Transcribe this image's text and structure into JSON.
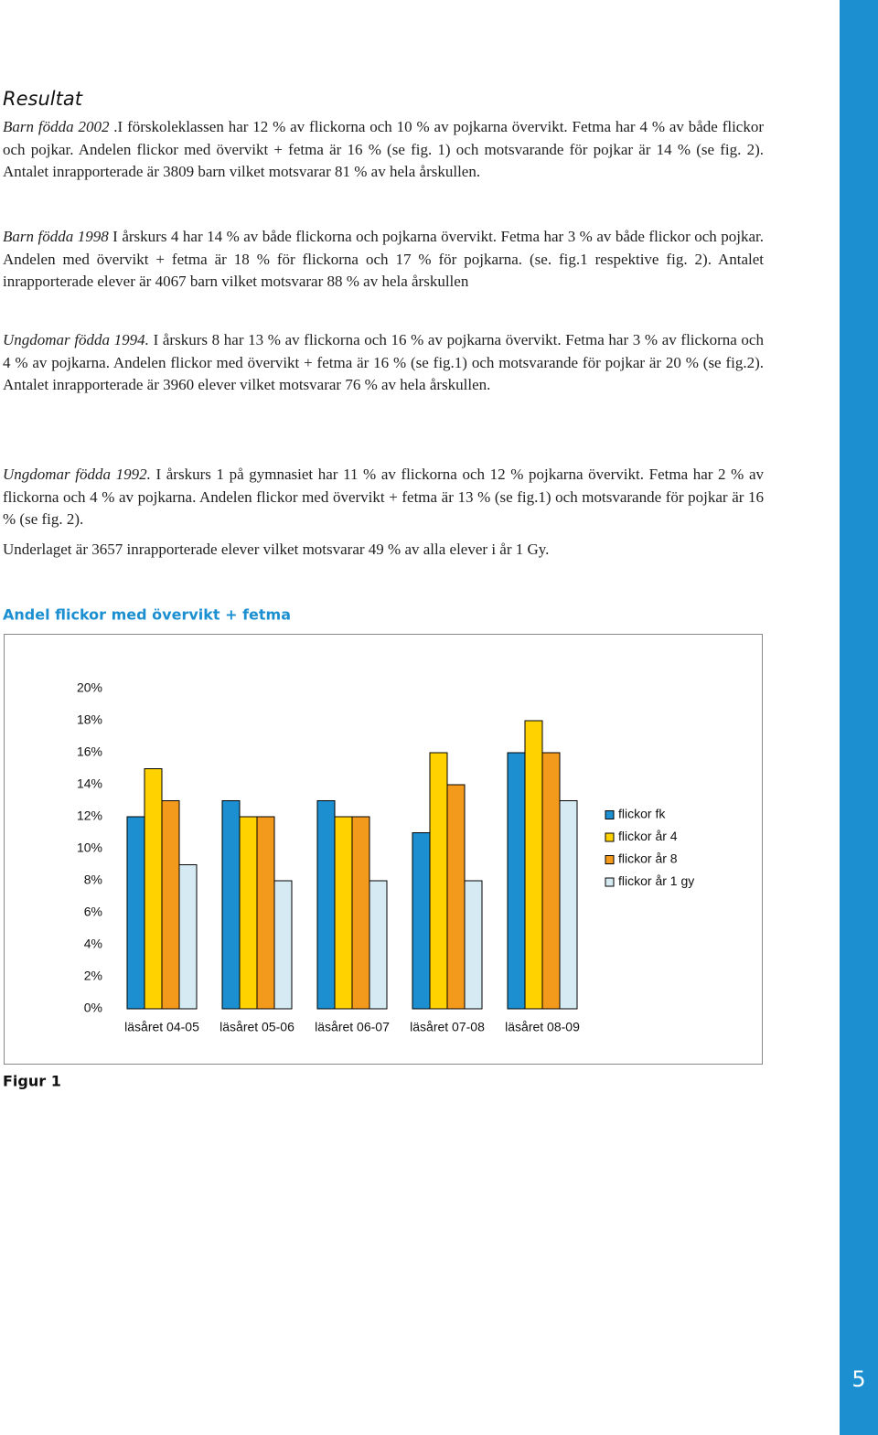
{
  "heading": "Resultat",
  "paragraphs": [
    {
      "lead": "Barn födda 2002",
      "text": " .I förskoleklassen har 12 % av flickorna och 10 % av pojkarna övervikt. Fetma har 4 % av både flickor och pojkar. Andelen flickor med övervikt + fetma är 16 % (se fig. 1) och motsvarande för pojkar är 14 % (se fig. 2). Antalet inrapporterade är 3809 barn vilket motsvarar 81 % av hela årskullen."
    },
    {
      "lead": "Barn födda 1998",
      "text": " I årskurs 4 har 14 % av både flickorna och pojkarna övervikt. Fetma har 3 % av både flickor och pojkar. Andelen med övervikt + fetma är 18 % för flickorna och 17 % för pojkarna. (se. fig.1 respektive fig. 2). Antalet inrapporterade elever är 4067 barn vilket motsvarar 88 % av hela årskullen"
    },
    {
      "lead": "Ungdomar födda 1994.",
      "text": " I årskurs 8 har 13 % av flickorna och 16 % av pojkarna övervikt. Fetma har 3 % av flickorna och 4 % av pojkarna. Andelen flickor med övervikt + fetma är 16 % (se fig.1) och motsvarande för pojkar är 20 % (se fig.2). Antalet inrapporterade är 3960 elever vilket motsvarar 76 % av hela årskullen."
    },
    {
      "lead": "Ungdomar födda 1992.",
      "text": " I årskurs 1 på gymnasiet har 11 % av flickorna och 12 % pojkarna övervikt. Fetma har 2 % av flickorna och 4 % av pojkarna. Andelen flickor med övervikt + fetma är 13 % (se fig.1) och motsvarande för pojkar är 16 % (se fig. 2)."
    },
    {
      "lead": "",
      "text": "Underlaget är 3657 inrapporterade elever vilket motsvarar 49 % av alla elever i år 1 Gy."
    }
  ],
  "chart_data": {
    "type": "bar",
    "title": "Andel flickor med övervikt + fetma",
    "categories": [
      "läsåret 04-05",
      "läsåret 05-06",
      "läsåret 06-07",
      "läsåret 07-08",
      "läsåret 08-09"
    ],
    "series": [
      {
        "name": "flickor fk",
        "color": "#1b8fd0",
        "values": [
          12,
          13,
          13,
          11,
          16
        ]
      },
      {
        "name": "flickor år 4",
        "color": "#ffd200",
        "values": [
          15,
          12,
          12,
          16,
          18
        ]
      },
      {
        "name": "flickor år 8",
        "color": "#f39a1d",
        "values": [
          13,
          12,
          12,
          14,
          16
        ]
      },
      {
        "name": "flickor år 1 gy",
        "color": "#d6eaf3",
        "values": [
          9,
          8,
          8,
          8,
          13
        ]
      }
    ],
    "ylim": [
      0,
      20
    ],
    "yticks": [
      {
        "value": 0,
        "label": "0%"
      },
      {
        "value": 2,
        "label": "2%"
      },
      {
        "value": 4,
        "label": "4%"
      },
      {
        "value": 6,
        "label": "6%"
      },
      {
        "value": 8,
        "label": "8%"
      },
      {
        "value": 10,
        "label": "10%"
      },
      {
        "value": 12,
        "label": "12%"
      },
      {
        "value": 14,
        "label": "14%"
      },
      {
        "value": 16,
        "label": "16%"
      },
      {
        "value": 18,
        "label": "18%"
      },
      {
        "value": 20,
        "label": "20%"
      }
    ],
    "legend": "right",
    "grid": false
  },
  "caption": "Figur 1",
  "page_number": "5"
}
